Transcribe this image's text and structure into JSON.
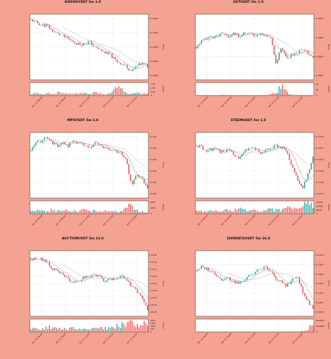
{
  "page": {
    "background": "#f4a291"
  },
  "colors": {
    "up": "#26a69a",
    "down": "#ef5350",
    "ma_short": "#888888",
    "ma_long": "#b8b8b8",
    "grid": "#e6e6e6",
    "axis": "#333333",
    "date_label": "#7a0c0c"
  },
  "chart_data": [
    {
      "type": "candlestick",
      "title": "DODOXUSDT 5m 1.0",
      "ylabel": "Price",
      "volume_label": "Volume",
      "price_ticks": [
        "0.0300",
        "0.0295",
        "0.0290",
        "0.0285",
        "0.0280"
      ],
      "volume_ticks": [
        "1.5M",
        "1.0M",
        "0.5M",
        "0"
      ],
      "x_ticks": [
        "Apr 22 06:00",
        "Apr 22 09:00",
        "Apr 22 12:00",
        "Apr 22 15:00",
        "Apr 22 18:00"
      ],
      "price_range": [
        0.0278,
        0.0302
      ],
      "volume_max": 1.6,
      "price_path": [
        0.03,
        0.0299,
        0.0298,
        0.0298,
        0.0296,
        0.0295,
        0.0294,
        0.0293,
        0.0292,
        0.0291,
        0.0291,
        0.0292,
        0.029,
        0.0289,
        0.0288,
        0.0287,
        0.0285,
        0.0284,
        0.0283,
        0.0281,
        0.0283,
        0.0284,
        0.0283
      ],
      "volume_path": [
        0.2,
        0.3,
        0.2,
        0.3,
        0.2,
        0.4,
        0.3,
        0.2,
        0.3,
        0.2,
        0.3,
        0.2,
        0.4,
        0.3,
        0.2,
        0.3,
        1.4,
        0.9,
        0.3,
        0.2,
        0.3,
        0.2,
        0.3
      ],
      "seed": 11
    },
    {
      "type": "candlestick",
      "title": "OXTUSDT 5m 1.0",
      "ylabel": "Price",
      "volume_label": "Volume",
      "price_ticks": [
        "0.0870",
        "0.0865",
        "0.0860",
        "0.0855"
      ],
      "volume_ticks": [
        "40",
        "20",
        "0"
      ],
      "x_ticks": [
        "Apr 22 06:00",
        "Apr 22 09:00",
        "Apr 22 12:00",
        "Apr 22 15:00",
        "Apr 22 18:00"
      ],
      "price_range": [
        0.085,
        0.0874
      ],
      "volume_max": 45,
      "price_path": [
        0.0862,
        0.0864,
        0.0865,
        0.0866,
        0.0866,
        0.0867,
        0.0866,
        0.0867,
        0.0866,
        0.0867,
        0.0867,
        0.0866,
        0.0867,
        0.0866,
        0.0866,
        0.0856,
        0.0862,
        0.0858,
        0.0859,
        0.086,
        0.0861,
        0.086,
        0.0858
      ],
      "volume_path": [
        1,
        1,
        2,
        1,
        1,
        2,
        1,
        1,
        1,
        2,
        1,
        1,
        2,
        1,
        4,
        10,
        40,
        14,
        2,
        1,
        2,
        1,
        1
      ],
      "seed": 23
    },
    {
      "type": "candlestick",
      "title": "MPXUSDT 5m 2.0",
      "ylabel": "Price",
      "volume_label": "Volume",
      "price_ticks": [
        "0.012",
        "0.012",
        "0.012",
        "0.012",
        "0.012",
        "0.012"
      ],
      "volume_ticks": [
        "200K",
        "100K",
        "0"
      ],
      "x_ticks": [
        "Apr 22 06:00",
        "Apr 22 09:00",
        "Apr 22 12:00",
        "Apr 22 15:00",
        "Apr 22 18:00"
      ],
      "price_range": [
        0.0104,
        0.0129
      ],
      "volume_max": 220,
      "price_path": [
        0.0122,
        0.0125,
        0.0126,
        0.0127,
        0.0125,
        0.0124,
        0.0125,
        0.0124,
        0.0126,
        0.0125,
        0.0124,
        0.0123,
        0.0125,
        0.0124,
        0.0123,
        0.0122,
        0.0122,
        0.0121,
        0.0118,
        0.0109,
        0.0113,
        0.0111,
        0.0108
      ],
      "volume_path": [
        40,
        60,
        50,
        40,
        70,
        50,
        40,
        60,
        50,
        40,
        70,
        50,
        60,
        40,
        50,
        60,
        50,
        40,
        150,
        120,
        60,
        40,
        30
      ],
      "seed": 37
    },
    {
      "type": "candlestick",
      "title": "STEEMUSDT 5m 1.0",
      "ylabel": "Price",
      "volume_label": "Volume",
      "price_ticks": [
        "0.1250",
        "0.1245",
        "0.1240",
        "0.1235",
        "0.1230",
        "0.1225"
      ],
      "volume_ticks": [
        "150000",
        "100000",
        "50000",
        "0"
      ],
      "x_ticks": [
        "Apr 22 06:00",
        "Apr 22 09:00",
        "Apr 22 12:00",
        "Apr 22 15:00",
        "Apr 22 18:00"
      ],
      "price_range": [
        0.1218,
        0.1254
      ],
      "volume_max": 160000,
      "price_path": [
        0.1247,
        0.1246,
        0.1243,
        0.1245,
        0.1244,
        0.1243,
        0.1245,
        0.1242,
        0.1239,
        0.1243,
        0.1246,
        0.1245,
        0.1243,
        0.1244,
        0.1245,
        0.1247,
        0.1246,
        0.1244,
        0.1236,
        0.1228,
        0.1223,
        0.1231,
        0.124
      ],
      "volume_path": [
        30000,
        40000,
        25000,
        50000,
        35000,
        30000,
        60000,
        40000,
        70000,
        45000,
        30000,
        50000,
        40000,
        35000,
        60000,
        45000,
        55000,
        70000,
        90000,
        120000,
        100000,
        130000,
        110000
      ],
      "seed": 51
    },
    {
      "type": "candlestick",
      "title": "AUCTIONUSDT 5m 13.0",
      "ylabel": "Price",
      "volume_label": "Volume",
      "price_ticks": [
        "10.80",
        "10.75",
        "10.70",
        "10.65",
        "10.60",
        "10.55",
        "10.50",
        "10.45",
        "10.40"
      ],
      "volume_ticks": [
        "2000",
        "1500",
        "1000",
        "500",
        "0"
      ],
      "x_ticks": [
        "Apr 22 06:00",
        "Apr 22 09:00",
        "Apr 22 12:00",
        "Apr 22 15:00",
        "Apr 22 18:00"
      ],
      "price_range": [
        10.38,
        10.82
      ],
      "volume_max": 2200,
      "price_path": [
        10.76,
        10.77,
        10.76,
        10.75,
        10.7,
        10.68,
        10.66,
        10.63,
        10.6,
        10.62,
        10.64,
        10.65,
        10.66,
        10.64,
        10.62,
        10.63,
        10.64,
        10.65,
        10.63,
        10.58,
        10.55,
        10.5,
        10.42
      ],
      "volume_path": [
        600,
        700,
        500,
        800,
        900,
        700,
        600,
        500,
        900,
        700,
        600,
        500,
        700,
        600,
        800,
        700,
        1000,
        1200,
        1500,
        1800,
        1300,
        1600,
        1900
      ],
      "seed": 67
    },
    {
      "type": "candlestick",
      "title": "1000RATSUSDT 5m 16.0",
      "ylabel": "Price",
      "volume_label": "Volume",
      "price_ticks": [
        "0.1070",
        "0.1065",
        "0.1060",
        "0.1055",
        "0.1050",
        "0.1045",
        "0.1040"
      ],
      "volume_ticks": [
        "2000000",
        "1000000",
        "0"
      ],
      "x_ticks": [
        "Apr 22 06:00",
        "Apr 22 09:00",
        "Apr 22 12:00",
        "Apr 22 15:00",
        "Apr 22 18:00"
      ],
      "price_range": [
        0.1036,
        0.1072
      ],
      "volume_max": 2400000,
      "price_path": [
        0.1061,
        0.1063,
        0.1062,
        0.106,
        0.1058,
        0.1056,
        0.1057,
        0.1055,
        0.1054,
        0.1056,
        0.1058,
        0.106,
        0.1062,
        0.1063,
        0.106,
        0.1057,
        0.1055,
        0.1053,
        0.1056,
        0.1058,
        0.105,
        0.1044,
        0.1041
      ],
      "volume_path": [
        50000,
        60000,
        40000,
        70000,
        50000,
        60000,
        80000,
        50000,
        60000,
        70000,
        50000,
        60000,
        40000,
        50000,
        60000,
        80000,
        60000,
        70000,
        90000,
        80000,
        120000,
        300000,
        2200000
      ],
      "seed": 79
    }
  ]
}
